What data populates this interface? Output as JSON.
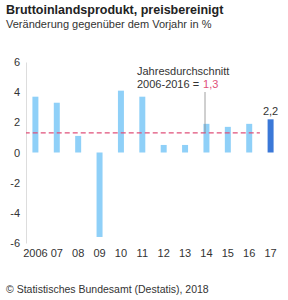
{
  "chart_data": {
    "type": "bar",
    "title": "Bruttoinlandsprodukt, preisbereinigt",
    "subtitle": "Veränderung gegenüber dem Vorjahr in %",
    "categories": [
      "2006",
      "07",
      "08",
      "09",
      "10",
      "11",
      "12",
      "13",
      "14",
      "15",
      "16",
      "17"
    ],
    "values": [
      3.7,
      3.3,
      1.1,
      -5.6,
      4.1,
      3.7,
      0.5,
      0.5,
      1.9,
      1.7,
      1.9,
      2.2
    ],
    "colors": [
      "#8fd0f8",
      "#8fd0f8",
      "#8fd0f8",
      "#8fd0f8",
      "#8fd0f8",
      "#8fd0f8",
      "#8fd0f8",
      "#8fd0f8",
      "#8fd0f8",
      "#8fd0f8",
      "#8fd0f8",
      "#3b78d8"
    ],
    "data_labels": true,
    "value_labels": [
      null,
      null,
      null,
      null,
      null,
      null,
      null,
      null,
      null,
      null,
      null,
      "2,2"
    ],
    "reference_line": {
      "value": 1.3,
      "label": "1,3",
      "text": [
        "Jahresdurchschnitt",
        "2006-2016 ="
      ],
      "from": "2006",
      "to": "16",
      "color": "#e0507a"
    },
    "ylim": [
      -6,
      6
    ],
    "yticks": [
      -6,
      -4,
      -2,
      0,
      2,
      4,
      6
    ],
    "grid": false,
    "source": "© Statistisches Bundesamt (Destatis), 2018"
  }
}
